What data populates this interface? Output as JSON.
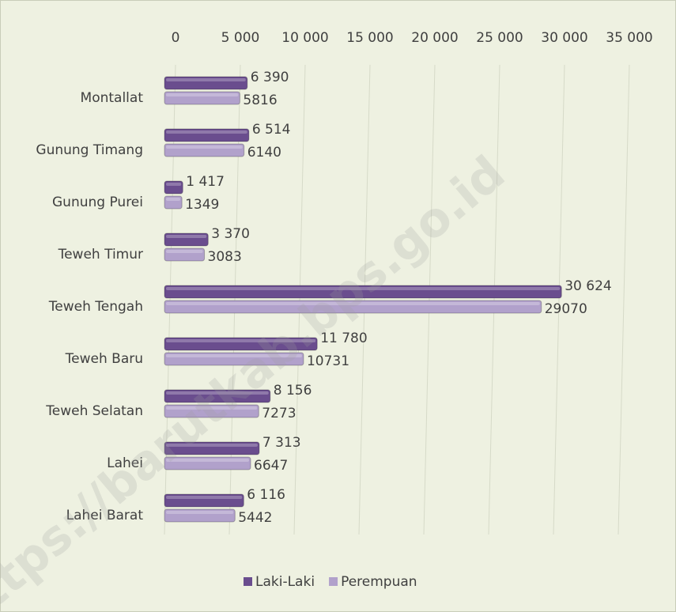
{
  "chart_data": {
    "type": "bar",
    "orientation": "horizontal",
    "categories": [
      "Montallat",
      "Gunung Timang",
      "Gunung Purei",
      "Teweh Timur",
      "Teweh Tengah",
      "Teweh Baru",
      "Teweh Selatan",
      "Lahei",
      "Lahei Barat"
    ],
    "series": [
      {
        "name": "Laki-Laki",
        "color": "#6a4d8e",
        "values": [
          6390,
          6514,
          1417,
          3370,
          30624,
          11780,
          8156,
          7313,
          6116
        ],
        "value_labels": [
          "6 390",
          "6 514",
          "1 417",
          "3 370",
          "30 624",
          "11 780",
          "8 156",
          "7 313",
          "6 116"
        ]
      },
      {
        "name": "Perempuan",
        "color": "#b1a1cb",
        "values": [
          5816,
          6140,
          1349,
          3083,
          29070,
          10731,
          7273,
          6647,
          5442
        ]
      }
    ],
    "xlim": [
      0,
      35000
    ],
    "xticks": [
      0,
      {
        "value": 5000,
        "label": "5 000"
      },
      {
        "value": 10000,
        "label": "10 000"
      },
      {
        "value": 15000,
        "label": "15 000"
      },
      {
        "value": 20000,
        "label": "20 000"
      },
      {
        "value": 25000,
        "label": "25 000"
      },
      {
        "value": 30000,
        "label": "30 000"
      },
      {
        "value": 35000,
        "label": "35 000"
      }
    ],
    "grid": true,
    "legend": "bottom",
    "watermark": "https://barutkab.bps.go.id"
  }
}
